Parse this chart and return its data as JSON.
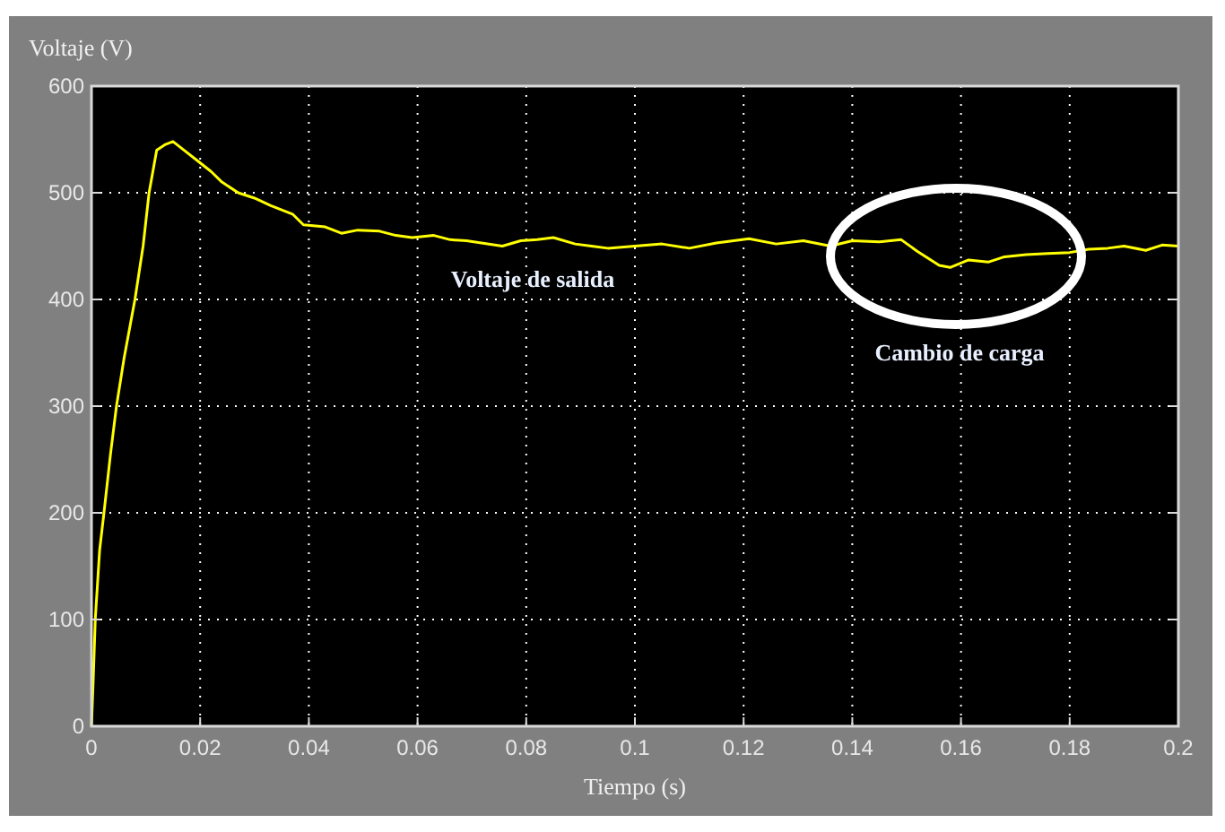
{
  "chart_data": {
    "type": "line",
    "xlabel": "Tiempo (s)",
    "ylabel": "Voltaje (V)",
    "xlim": [
      0,
      0.2
    ],
    "ylim": [
      0,
      600
    ],
    "xticks": [
      0,
      0.02,
      0.04,
      0.06,
      0.08,
      0.1,
      0.12,
      0.14,
      0.16,
      0.18,
      0.2
    ],
    "yticks": [
      0,
      100,
      200,
      300,
      400,
      500,
      600
    ],
    "grid": true,
    "series": [
      {
        "color": "#ffff00",
        "x": [
          0,
          0.0003,
          0.0007,
          0.0015,
          0.0023,
          0.0035,
          0.0046,
          0.006,
          0.008,
          0.0095,
          0.0106,
          0.012,
          0.0135,
          0.015,
          0.017,
          0.0195,
          0.022,
          0.024,
          0.027,
          0.03,
          0.033,
          0.037,
          0.039,
          0.043,
          0.046,
          0.049,
          0.053,
          0.056,
          0.059,
          0.063,
          0.066,
          0.069,
          0.0756,
          0.079,
          0.082,
          0.085,
          0.089,
          0.092,
          0.095,
          0.1,
          0.105,
          0.11,
          0.115,
          0.121,
          0.126,
          0.131,
          0.136,
          0.14,
          0.145,
          0.149,
          0.152,
          0.156,
          0.158,
          0.1614,
          0.165,
          0.168,
          0.172,
          0.176,
          0.18,
          0.1835,
          0.187,
          0.19,
          0.194,
          0.197,
          0.2
        ],
        "values": [
          0,
          40,
          100,
          165,
          200,
          255,
          300,
          345,
          400,
          450,
          500,
          540,
          545,
          548,
          540,
          530,
          520,
          510,
          500,
          495,
          488,
          480,
          470,
          468,
          462,
          465,
          464,
          460,
          458,
          460,
          456,
          455,
          450,
          455,
          456,
          458,
          452,
          450,
          448,
          450,
          452,
          448,
          453,
          457,
          452,
          455,
          450,
          455,
          454,
          456,
          445,
          432,
          430,
          437,
          435,
          440,
          442,
          443,
          444,
          447,
          448,
          450,
          446,
          451,
          450
        ]
      }
    ],
    "annotations": [
      "Voltaje de salida",
      "Cambio de carga"
    ]
  }
}
